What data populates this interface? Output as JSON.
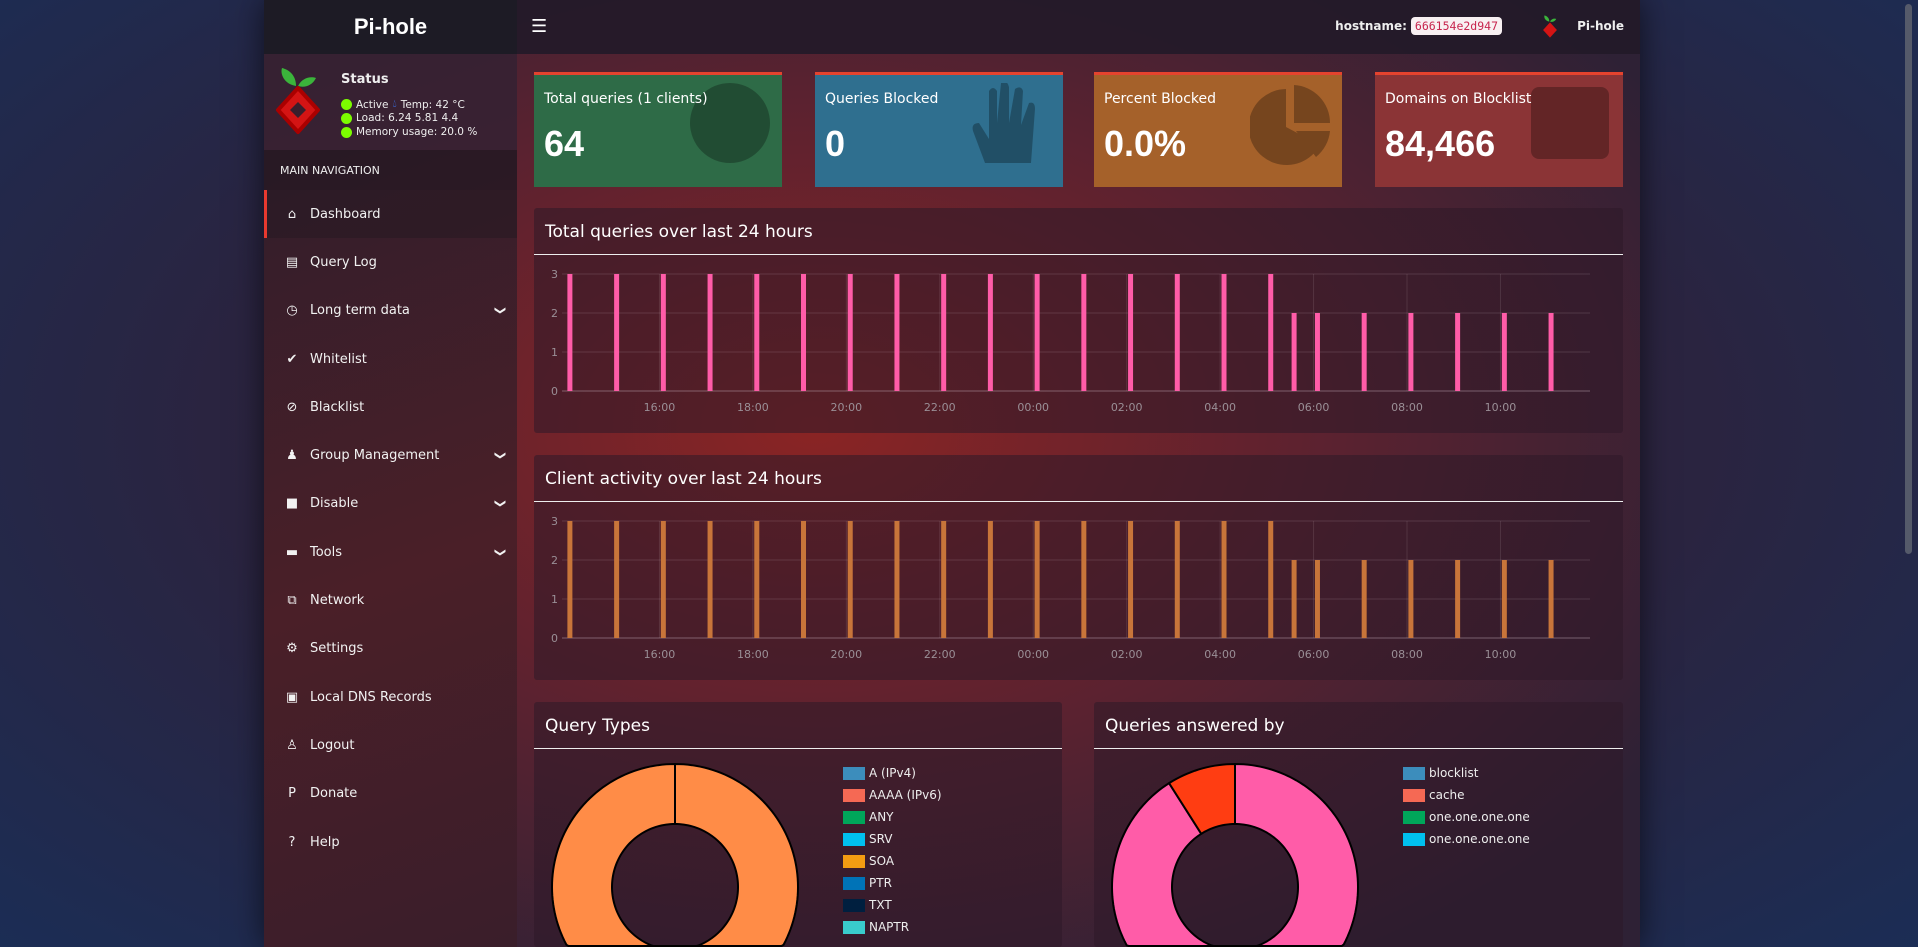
{
  "brand": "Pi-hole",
  "status": {
    "title": "Status",
    "active": "Active",
    "temp": "Temp: 42 °C",
    "load": "Load:  6.24  5.81  4.4",
    "memory": "Memory usage:  20.0 %"
  },
  "nav_header": "MAIN NAVIGATION",
  "nav": [
    {
      "label": "Dashboard",
      "icon": "home-icon",
      "active": true
    },
    {
      "label": "Query Log",
      "icon": "file-icon"
    },
    {
      "label": "Long term data",
      "icon": "clock-icon",
      "expand": true
    },
    {
      "label": "Whitelist",
      "icon": "check-circle-icon"
    },
    {
      "label": "Blacklist",
      "icon": "ban-icon"
    },
    {
      "label": "Group Management",
      "icon": "users-cog-icon",
      "expand": true
    },
    {
      "label": "Disable",
      "icon": "square-icon",
      "expand": true
    },
    {
      "label": "Tools",
      "icon": "folder-icon",
      "expand": true
    },
    {
      "label": "Network",
      "icon": "network-icon"
    },
    {
      "label": "Settings",
      "icon": "cogs-icon"
    },
    {
      "label": "Local DNS Records",
      "icon": "address-book-icon"
    },
    {
      "label": "Logout",
      "icon": "user-times-icon"
    },
    {
      "label": "Donate",
      "icon": "paypal-icon"
    },
    {
      "label": "Help",
      "icon": "question-circle-icon"
    }
  ],
  "header": {
    "menu_icon": "hamburger-icon",
    "hostname_label": "hostname:",
    "hostname": "666154e2d947",
    "user": "Pi-hole"
  },
  "cards": [
    {
      "label": "Total queries (1 clients)",
      "value": "64",
      "color": "#2e6b47",
      "icon": "globe-icon"
    },
    {
      "label": "Queries Blocked",
      "value": "0",
      "color": "#2f6f8f",
      "icon": "hand-icon"
    },
    {
      "label": "Percent Blocked",
      "value": "0.0%",
      "color": "#a5612a",
      "icon": "pie-chart-icon"
    },
    {
      "label": "Domains on Blocklist",
      "value": "84,466",
      "color": "#8b3436",
      "icon": "list-icon"
    }
  ],
  "chart_data": [
    {
      "type": "bar",
      "title": "Total queries over last 24 hours",
      "color": "#ff5ca8",
      "x_ticks": [
        "16:00",
        "18:00",
        "20:00",
        "22:00",
        "00:00",
        "02:00",
        "04:00",
        "06:00",
        "08:00",
        "10:00"
      ],
      "xlim": [
        "14:00",
        "11:55"
      ],
      "ylim": [
        0,
        3
      ],
      "y_ticks": [
        0,
        1,
        2,
        3
      ],
      "grid": true,
      "x": [
        "14:05",
        "15:05",
        "16:05",
        "17:05",
        "18:05",
        "19:05",
        "20:05",
        "21:05",
        "22:05",
        "23:05",
        "00:05",
        "01:05",
        "02:05",
        "03:05",
        "04:05",
        "05:05",
        "05:35",
        "06:05",
        "07:05",
        "08:05",
        "09:05",
        "10:05",
        "11:05"
      ],
      "values": [
        3,
        3,
        3,
        3,
        3,
        3,
        3,
        3,
        3,
        3,
        3,
        3,
        3,
        3,
        3,
        3,
        2,
        2,
        2,
        2,
        2,
        2,
        2
      ]
    },
    {
      "type": "bar",
      "title": "Client activity over last 24 hours",
      "color": "#c8753a",
      "x_ticks": [
        "16:00",
        "18:00",
        "20:00",
        "22:00",
        "00:00",
        "02:00",
        "04:00",
        "06:00",
        "08:00",
        "10:00"
      ],
      "xlim": [
        "14:00",
        "11:55"
      ],
      "ylim": [
        0,
        3
      ],
      "y_ticks": [
        0,
        1,
        2,
        3
      ],
      "grid": true,
      "x": [
        "14:05",
        "15:05",
        "16:05",
        "17:05",
        "18:05",
        "19:05",
        "20:05",
        "21:05",
        "22:05",
        "23:05",
        "00:05",
        "01:05",
        "02:05",
        "03:05",
        "04:05",
        "05:05",
        "05:35",
        "06:05",
        "07:05",
        "08:05",
        "09:05",
        "10:05",
        "11:05"
      ],
      "values": [
        3,
        3,
        3,
        3,
        3,
        3,
        3,
        3,
        3,
        3,
        3,
        3,
        3,
        3,
        3,
        3,
        2,
        2,
        2,
        2,
        2,
        2,
        2
      ]
    },
    {
      "type": "pie",
      "title": "Query Types",
      "donut": true,
      "slices": [
        {
          "value": 100,
          "color": "#ff8c47"
        }
      ],
      "legend": [
        {
          "label": "A (IPv4)",
          "color": "#3c8dbc"
        },
        {
          "label": "AAAA (IPv6)",
          "color": "#f56954"
        },
        {
          "label": "ANY",
          "color": "#00a65a"
        },
        {
          "label": "SRV",
          "color": "#00c0ef"
        },
        {
          "label": "SOA",
          "color": "#f39c12"
        },
        {
          "label": "PTR",
          "color": "#0073b7"
        },
        {
          "label": "TXT",
          "color": "#001f3f"
        },
        {
          "label": "NAPTR",
          "color": "#39cccc"
        }
      ]
    },
    {
      "type": "pie",
      "title": "Queries answered by",
      "donut": true,
      "slices": [
        {
          "value": 91,
          "color": "#ff5ca8"
        },
        {
          "value": 9,
          "color": "#ff3d12"
        }
      ],
      "legend": [
        {
          "label": "blocklist",
          "color": "#3c8dbc"
        },
        {
          "label": "cache",
          "color": "#f56954"
        },
        {
          "label": "one.one.one.one",
          "color": "#00a65a"
        },
        {
          "label": "one.one.one.one",
          "color": "#00c0ef"
        }
      ]
    }
  ]
}
